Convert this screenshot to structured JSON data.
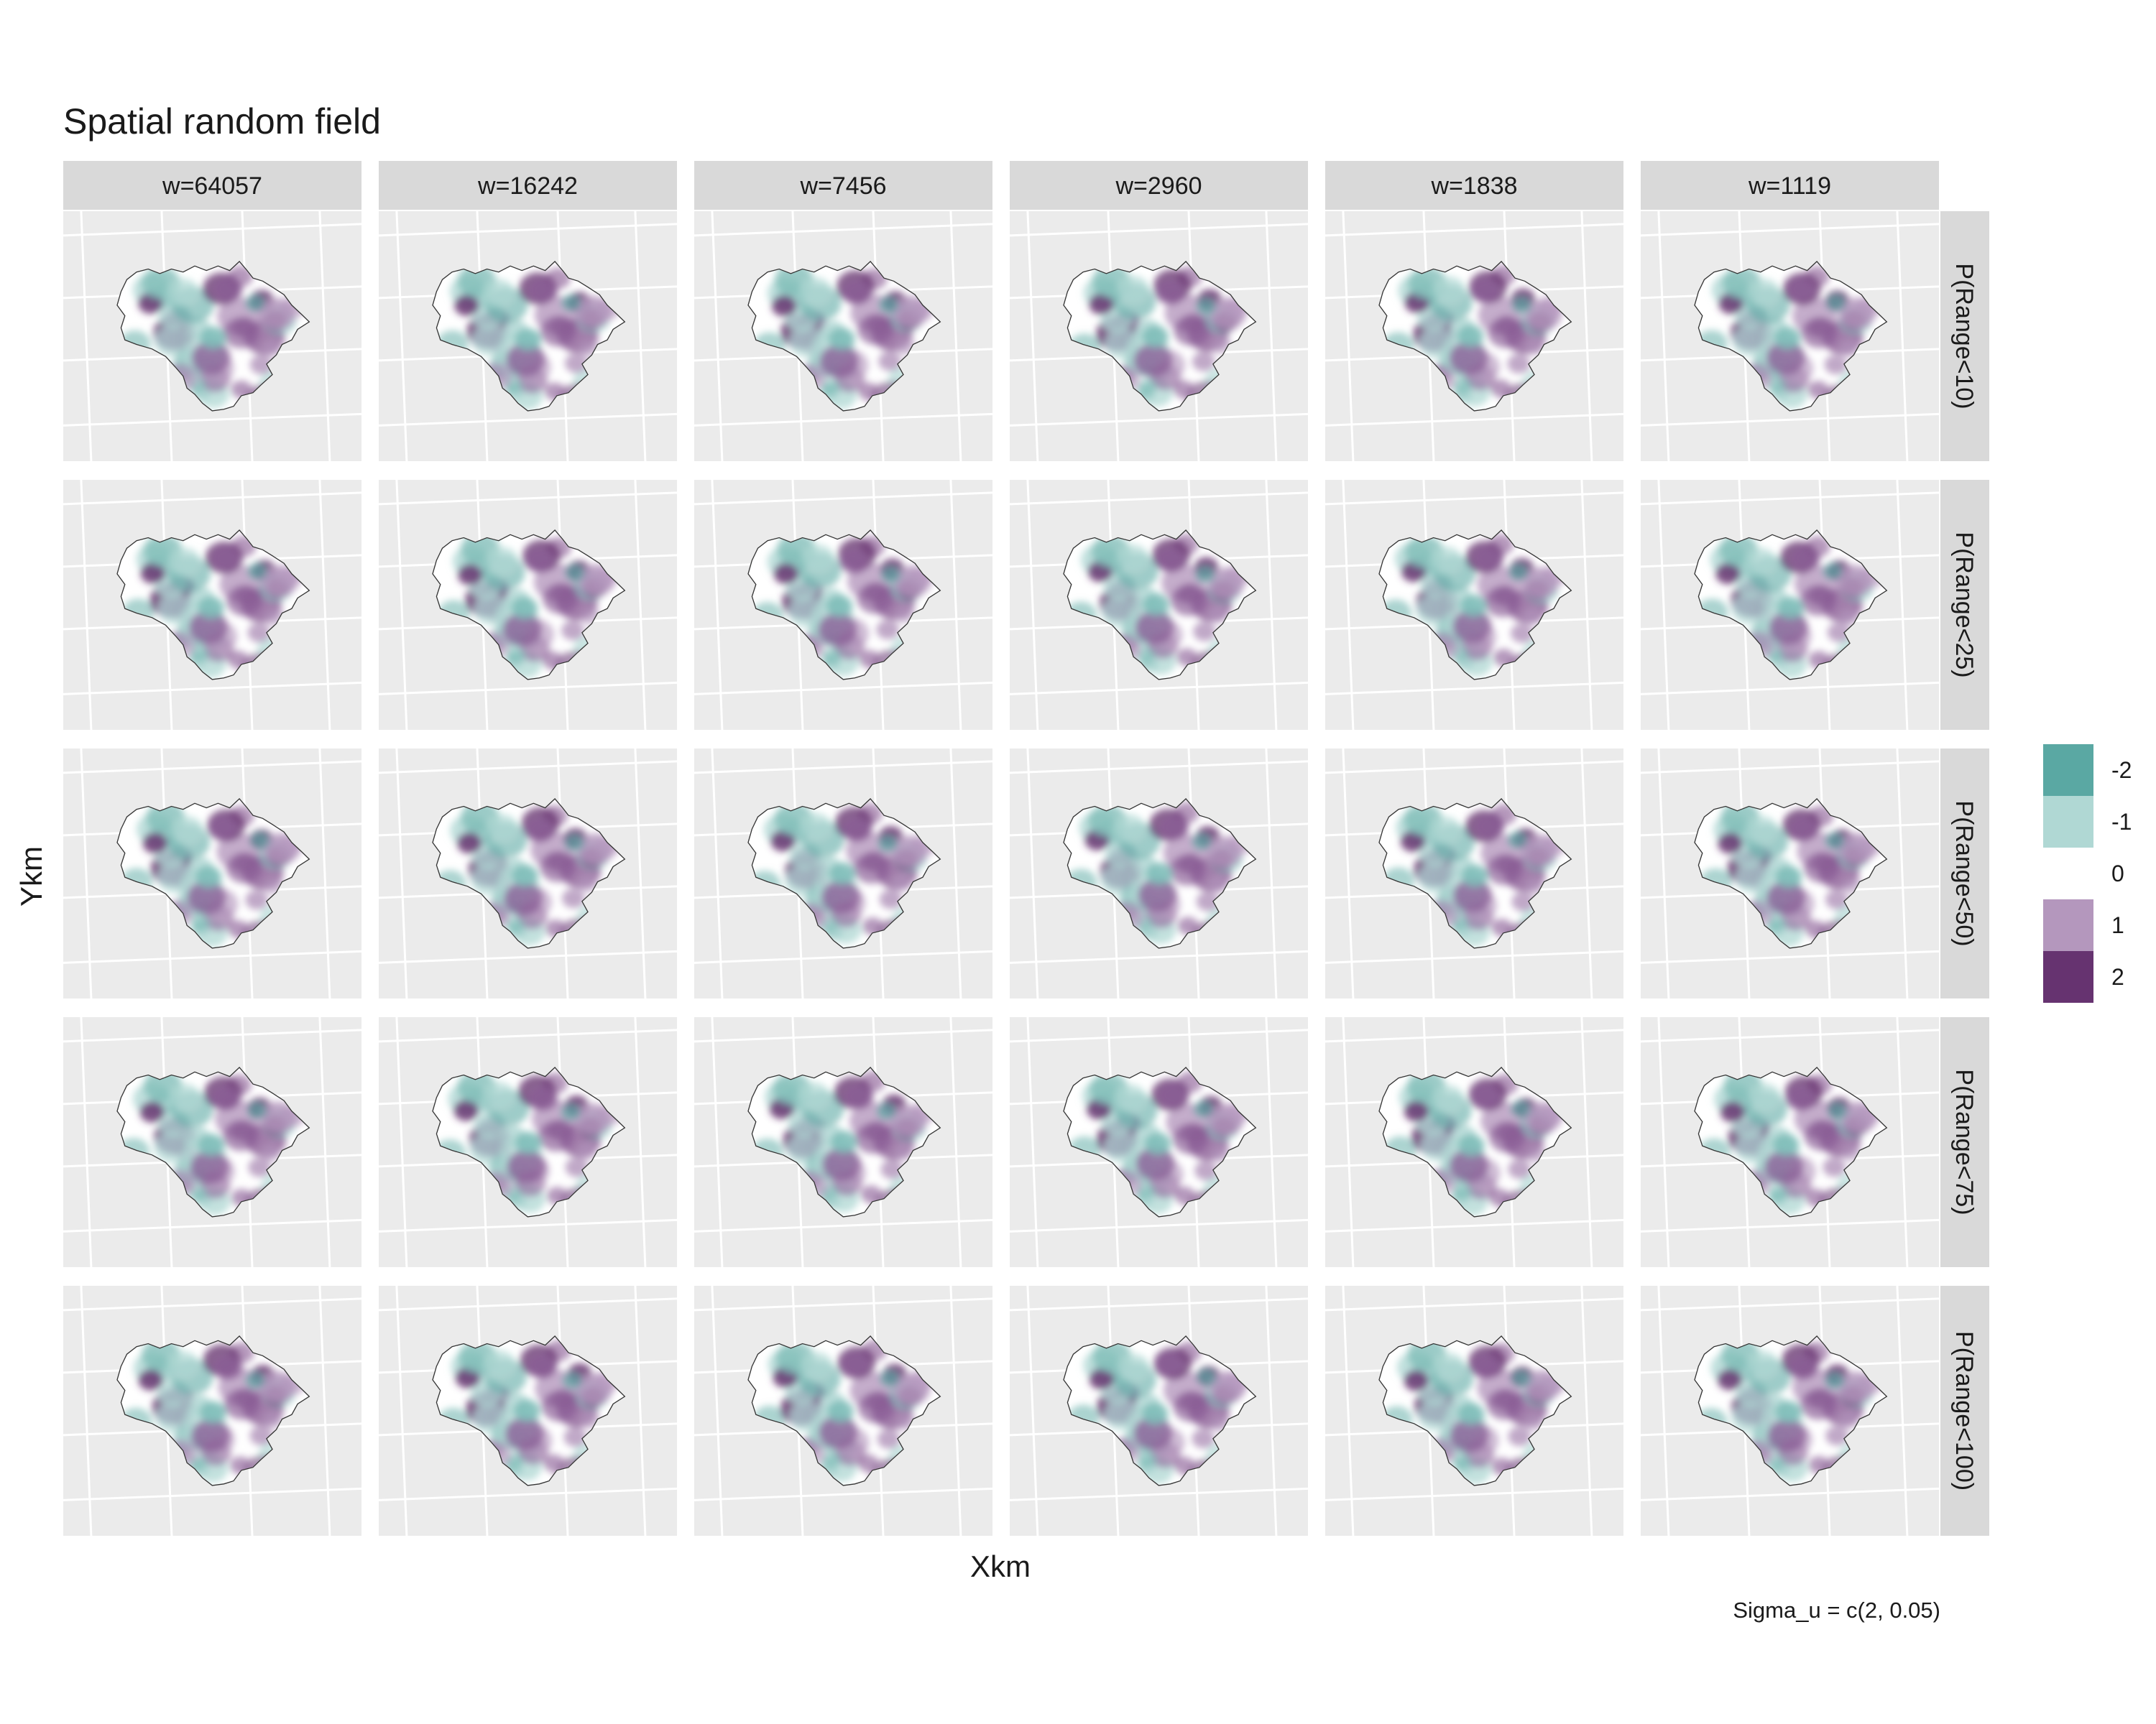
{
  "chart_data": {
    "type": "heatmap",
    "title": "Spatial random field",
    "xlabel": "Xkm",
    "ylabel": "Ykm",
    "caption": "Sigma_u = c(2, 0.05)",
    "columns": [
      "w=64057",
      "w=16242",
      "w=7456",
      "w=2960",
      "w=1838",
      "w=1119"
    ],
    "rows": [
      "P(Range<10)",
      "P(Range<25)",
      "P(Range<50)",
      "P(Range<75)",
      "P(Range<100)"
    ],
    "legend": {
      "values": [
        "-2",
        "-1",
        "0",
        "1",
        "2"
      ],
      "colors": [
        "#5aa8a3",
        "#b0d8d4",
        "#ffffff",
        "#b497bd",
        "#663370"
      ]
    },
    "grid": true,
    "legend_position": "right"
  }
}
